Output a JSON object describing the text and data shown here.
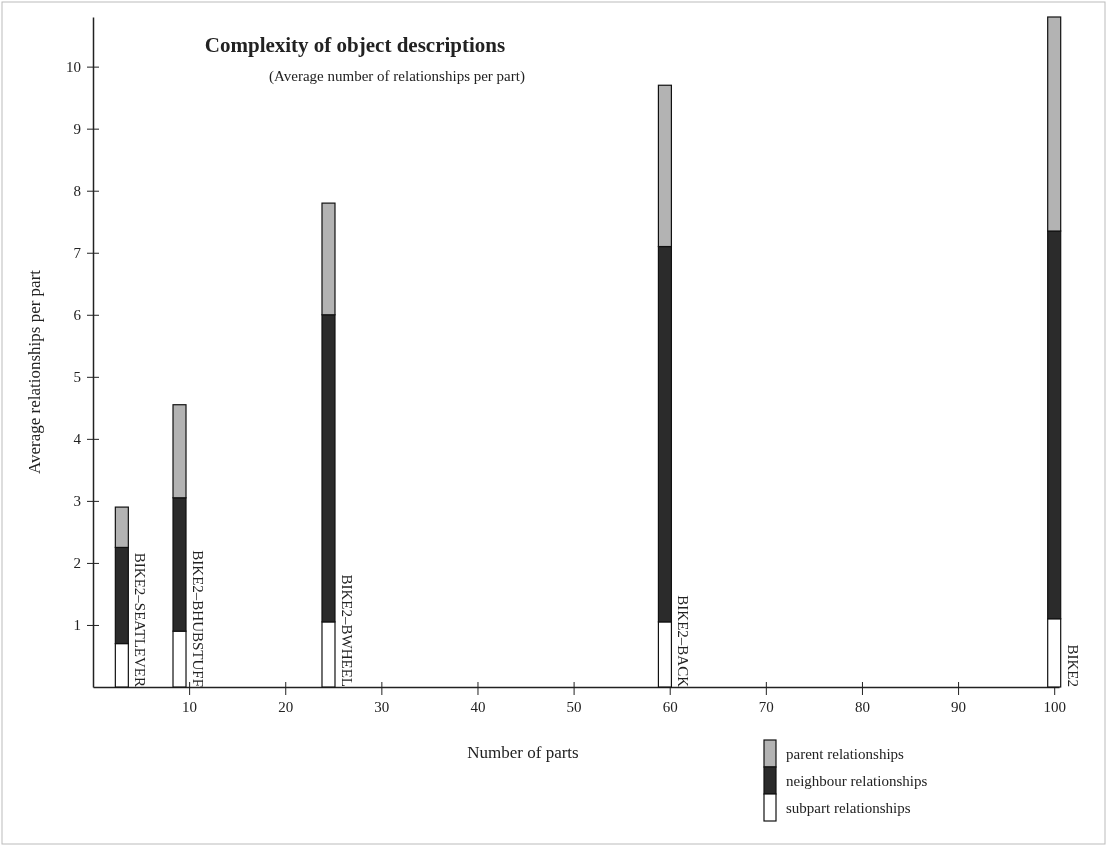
{
  "chart_data": {
    "type": "bar",
    "stacked": true,
    "title": "Complexity of object descriptions",
    "subtitle": "(Average number of relationships per part)",
    "xlabel": "Number of parts",
    "ylabel": "Average  relationships per part",
    "x": [
      3,
      9,
      24.5,
      59.5,
      100
    ],
    "series": [
      {
        "name": "subpart relationships",
        "color": "#ffffff",
        "values": [
          0.7,
          0.9,
          1.05,
          1.05,
          1.1
        ]
      },
      {
        "name": "neighbour relationships",
        "color": "#2b2b2b",
        "values": [
          1.55,
          2.15,
          4.95,
          6.05,
          6.25
        ]
      },
      {
        "name": "parent relationships",
        "color": "#b3b3b3",
        "values": [
          0.65,
          1.5,
          1.8,
          2.6,
          3.45
        ]
      }
    ],
    "annotations": [
      {
        "text": "BIKE2–SEATLEVER",
        "x": 3,
        "y": 0
      },
      {
        "text": "BIKE2–BHUBSTUFF",
        "x": 9,
        "y": 0
      },
      {
        "text": "BIKE2–BWHEEL",
        "x": 24.5,
        "y": 0
      },
      {
        "text": "BIKE2–BACK",
        "x": 59.5,
        "y": 0
      },
      {
        "text": "BIKE2",
        "x": 100,
        "y": 0
      }
    ],
    "xlim": [
      0,
      100.5
    ],
    "xticks": [
      10,
      20,
      30,
      40,
      50,
      60,
      70,
      80,
      90,
      100
    ],
    "ylim": [
      0,
      10.8
    ],
    "yticks": [
      1,
      2,
      3,
      4,
      5,
      6,
      7,
      8,
      9,
      10
    ],
    "grid": false,
    "legend": "bottom right"
  }
}
